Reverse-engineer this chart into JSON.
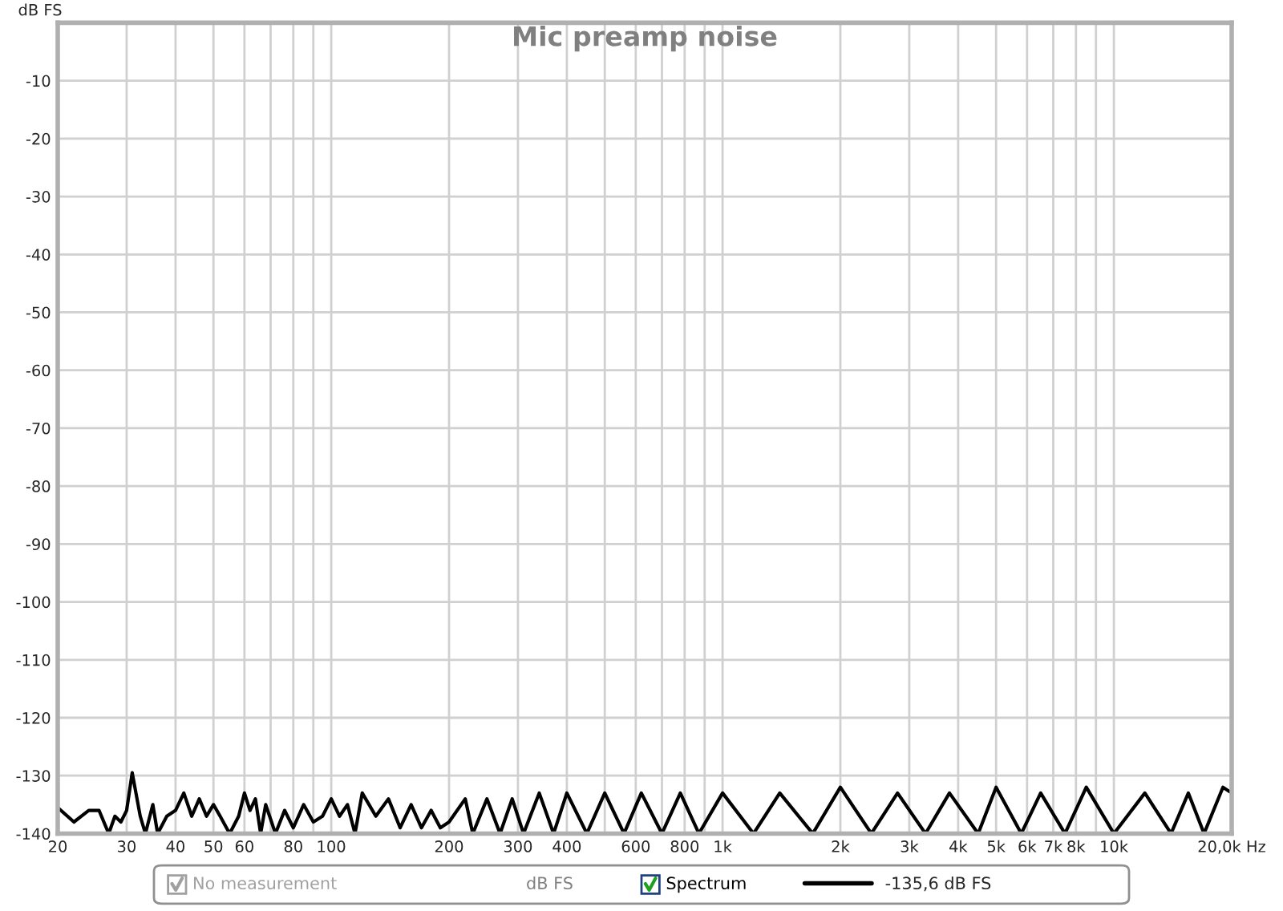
{
  "chart_data": {
    "type": "line",
    "title": "Mic preamp noise",
    "ylabel": "dB FS",
    "x": [
      20,
      22,
      24,
      25.5,
      27,
      28,
      29,
      30,
      31,
      32.5,
      33.5,
      35,
      36,
      38,
      40,
      42,
      44,
      46,
      48,
      50,
      52,
      55,
      58,
      60,
      62,
      64,
      66,
      68,
      72,
      76,
      80,
      85,
      90,
      95,
      100,
      105,
      110,
      115,
      120,
      130,
      140,
      150,
      160,
      170,
      180,
      190,
      200,
      220,
      230,
      250,
      270,
      290,
      310,
      340,
      370,
      400,
      450,
      500,
      560,
      620,
      700,
      780,
      870,
      1000,
      1200,
      1400,
      1700,
      2000,
      2400,
      2800,
      3300,
      3800,
      4500,
      5000,
      5800,
      6500,
      7500,
      8500,
      10000,
      12000,
      14000,
      15500,
      17000,
      19000,
      20000
    ],
    "series": [
      {
        "name": "-135,6 dB FS",
        "color": "#000000",
        "values": [
          -135.5,
          -138,
          -136,
          -136,
          -140,
          -137,
          -138,
          -136,
          -129.5,
          -137,
          -140,
          -135,
          -140,
          -137,
          -136,
          -133,
          -137,
          -134,
          -137,
          -135,
          -137,
          -140,
          -137,
          -133,
          -136,
          -134,
          -140,
          -135,
          -140,
          -136,
          -139,
          -135,
          -138,
          -137,
          -134,
          -137,
          -135,
          -140,
          -133,
          -137,
          -134,
          -139,
          -135,
          -139,
          -136,
          -139,
          -138,
          -134,
          -140,
          -134,
          -140,
          -134,
          -140,
          -133,
          -140,
          -133,
          -140,
          -133,
          -140,
          -133,
          -140,
          -133,
          -140,
          -133,
          -140,
          -133,
          -140,
          -132,
          -140,
          -133,
          -140,
          -133,
          -140,
          -132,
          -140,
          -133,
          -140,
          -132,
          -140,
          -133,
          -140,
          -133,
          -140,
          -132,
          -133
        ]
      }
    ],
    "xlim": [
      20,
      20000
    ],
    "ylim": [
      -140,
      0
    ],
    "log": "x",
    "xticks": [
      20,
      30,
      40,
      50,
      60,
      {
        "value": 70,
        "label": null
      },
      80,
      {
        "value": 90,
        "label": null
      },
      100,
      200,
      300,
      400,
      {
        "value": 500,
        "label": null
      },
      600,
      {
        "value": 700,
        "label": null
      },
      800,
      {
        "value": 900,
        "label": null
      },
      {
        "value": 1000,
        "label": "1k"
      },
      {
        "value": 2000,
        "label": "2k"
      },
      {
        "value": 3000,
        "label": "3k"
      },
      {
        "value": 4000,
        "label": "4k"
      },
      {
        "value": 5000,
        "label": "5k"
      },
      {
        "value": 6000,
        "label": "6k"
      },
      {
        "value": 7000,
        "label": "7k"
      },
      {
        "value": 8000,
        "label": "8k"
      },
      {
        "value": 9000,
        "label": null
      },
      {
        "value": 10000,
        "label": "10k"
      },
      {
        "value": 20000,
        "label": "20,0k Hz"
      }
    ],
    "yticks": [
      -140,
      -130,
      -120,
      -110,
      -100,
      -90,
      -80,
      -70,
      -60,
      -50,
      -40,
      -30,
      -20,
      -10
    ],
    "grid": true,
    "legend": "bottom",
    "line_style": "solid",
    "annotations": [
      "No measurement",
      "dB FS",
      "Spectrum"
    ]
  }
}
